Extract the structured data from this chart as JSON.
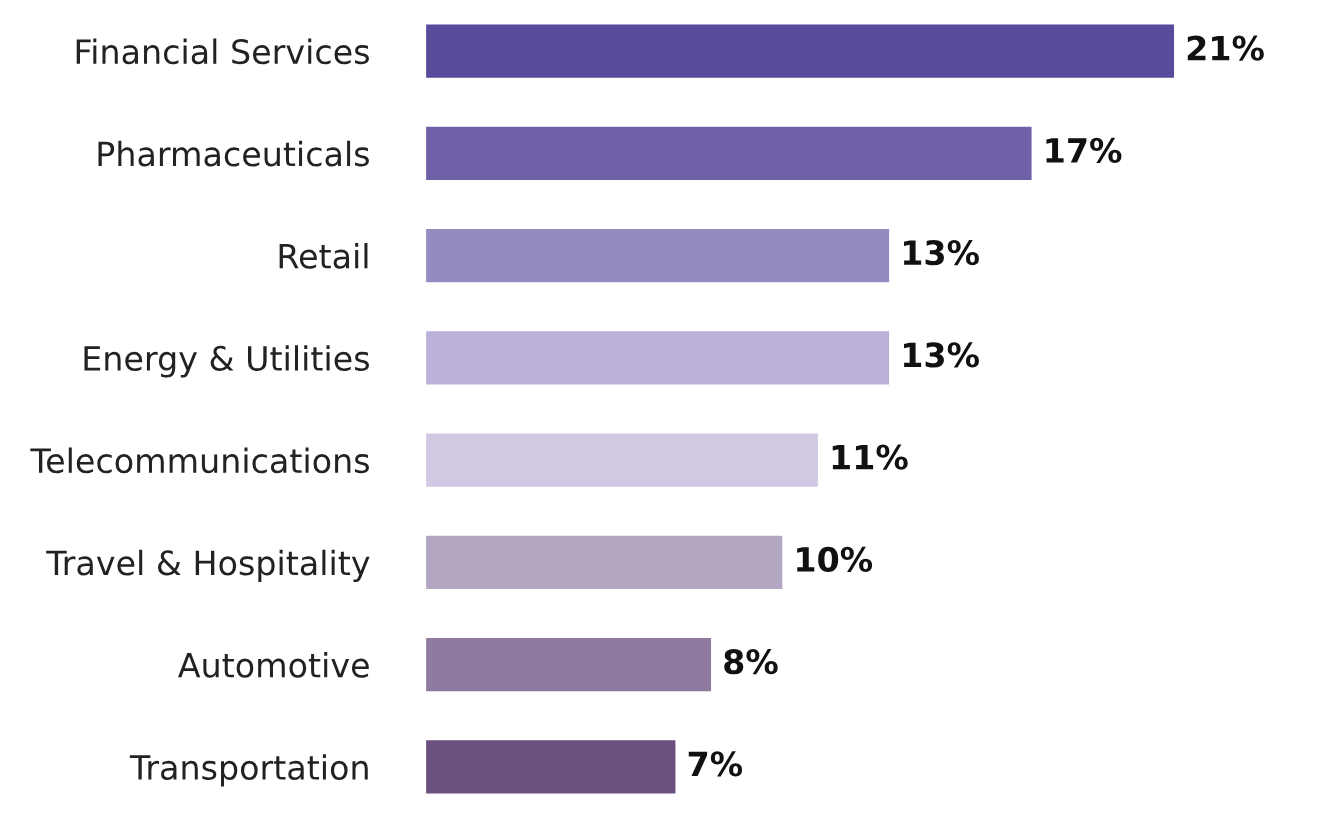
{
  "chart_data": {
    "type": "bar",
    "orientation": "horizontal",
    "categories": [
      "Financial Services",
      "Pharmaceuticals",
      "Retail",
      "Energy & Utilities",
      "Telecommunications",
      "Travel & Hospitality",
      "Automotive",
      "Transportation"
    ],
    "values": [
      21,
      17,
      13,
      13,
      11,
      10,
      8,
      7
    ],
    "colors": [
      "#574b9c",
      "#6f60a8",
      "#958bc1",
      "#bbb1d9",
      "#d3c8e3",
      "#b3a6c3",
      "#8f7ba0",
      "#6c5180"
    ],
    "value_labels": [
      "21%",
      "17%",
      "13%",
      "13%",
      "11%",
      "10%",
      "8%",
      "7%"
    ]
  }
}
